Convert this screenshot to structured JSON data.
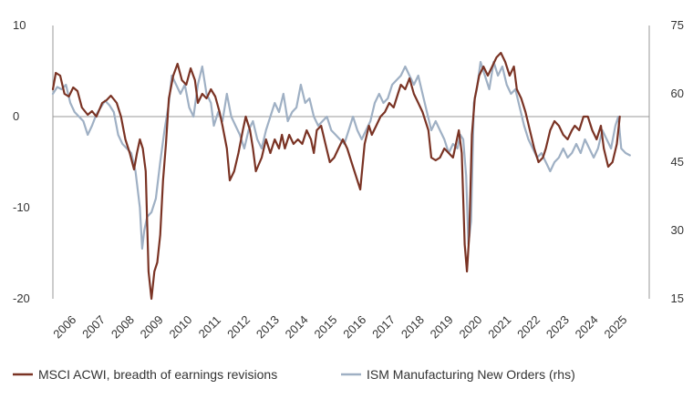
{
  "chart_data": {
    "type": "line",
    "title": "",
    "xlabel": "",
    "ylabel": "",
    "ylim": [
      -20,
      10
    ],
    "y2lim": [
      15,
      75
    ],
    "yticks": [
      "10",
      "0",
      "-10",
      "-20"
    ],
    "y2ticks": [
      "75",
      "60",
      "45",
      "30",
      "15"
    ],
    "xticks": [
      "2006",
      "2007",
      "2008",
      "2009",
      "2010",
      "2011",
      "2012",
      "2013",
      "2014",
      "2015",
      "2016",
      "2017",
      "2018",
      "2019",
      "2020",
      "2021",
      "2022",
      "2023",
      "2024",
      "2025"
    ],
    "grid": false,
    "legend_position": "bottom",
    "colors": {
      "msci": "#7a3324",
      "ism": "#9fb0c4",
      "axis": "#999999"
    },
    "series": [
      {
        "name": "MSCI ACWI, breadth of earnings revisions",
        "axis": "left",
        "points": [
          [
            2006.0,
            3.0
          ],
          [
            2006.1,
            4.8
          ],
          [
            2006.25,
            4.5
          ],
          [
            2006.4,
            2.5
          ],
          [
            2006.55,
            2.2
          ],
          [
            2006.7,
            3.2
          ],
          [
            2006.85,
            2.8
          ],
          [
            2007.0,
            1.0
          ],
          [
            2007.2,
            0.2
          ],
          [
            2007.35,
            0.6
          ],
          [
            2007.5,
            0.0
          ],
          [
            2007.7,
            1.5
          ],
          [
            2007.85,
            1.8
          ],
          [
            2008.0,
            2.3
          ],
          [
            2008.2,
            1.5
          ],
          [
            2008.35,
            0.0
          ],
          [
            2008.5,
            -2.5
          ],
          [
            2008.65,
            -4.0
          ],
          [
            2008.8,
            -5.8
          ],
          [
            2008.9,
            -4.0
          ],
          [
            2009.0,
            -2.5
          ],
          [
            2009.1,
            -3.5
          ],
          [
            2009.2,
            -6.0
          ],
          [
            2009.3,
            -17.0
          ],
          [
            2009.4,
            -20.0
          ],
          [
            2009.5,
            -17.0
          ],
          [
            2009.6,
            -16.0
          ],
          [
            2009.7,
            -13.0
          ],
          [
            2009.8,
            -7.0
          ],
          [
            2009.9,
            -3.0
          ],
          [
            2010.0,
            2.0
          ],
          [
            2010.15,
            4.5
          ],
          [
            2010.3,
            5.8
          ],
          [
            2010.45,
            4.0
          ],
          [
            2010.6,
            3.5
          ],
          [
            2010.75,
            5.3
          ],
          [
            2010.9,
            4.0
          ],
          [
            2011.0,
            1.5
          ],
          [
            2011.15,
            2.5
          ],
          [
            2011.3,
            2.0
          ],
          [
            2011.45,
            3.0
          ],
          [
            2011.6,
            2.2
          ],
          [
            2011.75,
            0.5
          ],
          [
            2011.85,
            -1.0
          ],
          [
            2012.0,
            -3.5
          ],
          [
            2012.1,
            -7.0
          ],
          [
            2012.25,
            -6.0
          ],
          [
            2012.4,
            -4.0
          ],
          [
            2012.55,
            -1.5
          ],
          [
            2012.65,
            0.0
          ],
          [
            2012.8,
            -1.5
          ],
          [
            2012.9,
            -3.5
          ],
          [
            2013.0,
            -6.0
          ],
          [
            2013.2,
            -4.5
          ],
          [
            2013.35,
            -2.5
          ],
          [
            2013.5,
            -4.0
          ],
          [
            2013.65,
            -2.5
          ],
          [
            2013.8,
            -3.5
          ],
          [
            2013.9,
            -2.0
          ],
          [
            2014.0,
            -3.5
          ],
          [
            2014.15,
            -2.0
          ],
          [
            2014.3,
            -3.0
          ],
          [
            2014.45,
            -2.5
          ],
          [
            2014.6,
            -3.0
          ],
          [
            2014.75,
            -1.5
          ],
          [
            2014.9,
            -2.5
          ],
          [
            2015.0,
            -4.0
          ],
          [
            2015.1,
            -1.5
          ],
          [
            2015.25,
            -1.0
          ],
          [
            2015.4,
            -3.0
          ],
          [
            2015.55,
            -5.0
          ],
          [
            2015.7,
            -4.5
          ],
          [
            2015.85,
            -3.5
          ],
          [
            2016.0,
            -2.5
          ],
          [
            2016.15,
            -3.5
          ],
          [
            2016.3,
            -5.0
          ],
          [
            2016.45,
            -6.5
          ],
          [
            2016.6,
            -8.0
          ],
          [
            2016.75,
            -3.0
          ],
          [
            2016.9,
            -1.0
          ],
          [
            2017.0,
            -2.0
          ],
          [
            2017.15,
            -1.0
          ],
          [
            2017.3,
            0.0
          ],
          [
            2017.45,
            0.5
          ],
          [
            2017.6,
            1.5
          ],
          [
            2017.75,
            1.0
          ],
          [
            2017.9,
            2.5
          ],
          [
            2018.0,
            3.5
          ],
          [
            2018.15,
            3.0
          ],
          [
            2018.3,
            4.2
          ],
          [
            2018.45,
            2.5
          ],
          [
            2018.6,
            1.5
          ],
          [
            2018.75,
            0.5
          ],
          [
            2018.85,
            -0.5
          ],
          [
            2018.95,
            -1.5
          ],
          [
            2019.05,
            -4.5
          ],
          [
            2019.2,
            -4.8
          ],
          [
            2019.35,
            -4.5
          ],
          [
            2019.5,
            -3.5
          ],
          [
            2019.65,
            -4.0
          ],
          [
            2019.8,
            -4.5
          ],
          [
            2019.9,
            -3.0
          ],
          [
            2020.0,
            -1.5
          ],
          [
            2020.1,
            -4.0
          ],
          [
            2020.2,
            -14.0
          ],
          [
            2020.28,
            -17.0
          ],
          [
            2020.36,
            -13.0
          ],
          [
            2020.45,
            -2.0
          ],
          [
            2020.55,
            2.0
          ],
          [
            2020.7,
            4.5
          ],
          [
            2020.85,
            5.5
          ],
          [
            2021.0,
            4.5
          ],
          [
            2021.15,
            5.5
          ],
          [
            2021.3,
            6.5
          ],
          [
            2021.45,
            7.0
          ],
          [
            2021.6,
            6.0
          ],
          [
            2021.75,
            4.5
          ],
          [
            2021.9,
            5.5
          ],
          [
            2022.0,
            3.0
          ],
          [
            2022.15,
            2.0
          ],
          [
            2022.3,
            0.5
          ],
          [
            2022.45,
            -1.5
          ],
          [
            2022.6,
            -3.5
          ],
          [
            2022.75,
            -5.0
          ],
          [
            2022.9,
            -4.5
          ],
          [
            2023.0,
            -3.5
          ],
          [
            2023.15,
            -1.5
          ],
          [
            2023.3,
            -0.5
          ],
          [
            2023.45,
            -1.0
          ],
          [
            2023.6,
            -2.0
          ],
          [
            2023.75,
            -2.5
          ],
          [
            2023.9,
            -1.5
          ],
          [
            2024.0,
            -1.0
          ],
          [
            2024.15,
            -1.5
          ],
          [
            2024.3,
            0.0
          ],
          [
            2024.45,
            0.0
          ],
          [
            2024.6,
            -1.5
          ],
          [
            2024.75,
            -2.5
          ],
          [
            2024.9,
            -1.0
          ],
          [
            2025.0,
            -3.5
          ],
          [
            2025.15,
            -5.5
          ],
          [
            2025.3,
            -5.0
          ],
          [
            2025.45,
            -3.0
          ],
          [
            2025.55,
            0.0
          ]
        ]
      },
      {
        "name": "ISM Manufacturing New Orders (rhs)",
        "axis": "right",
        "points": [
          [
            2006.0,
            60.0
          ],
          [
            2006.15,
            61.5
          ],
          [
            2006.3,
            61.0
          ],
          [
            2006.45,
            62.0
          ],
          [
            2006.6,
            58.0
          ],
          [
            2006.75,
            56.0
          ],
          [
            2006.9,
            55.0
          ],
          [
            2007.05,
            54.0
          ],
          [
            2007.2,
            51.0
          ],
          [
            2007.35,
            53.0
          ],
          [
            2007.5,
            55.5
          ],
          [
            2007.65,
            57.0
          ],
          [
            2007.8,
            58.5
          ],
          [
            2007.95,
            57.5
          ],
          [
            2008.1,
            56.0
          ],
          [
            2008.25,
            51.0
          ],
          [
            2008.4,
            49.0
          ],
          [
            2008.55,
            48.0
          ],
          [
            2008.7,
            47.0
          ],
          [
            2008.85,
            43.0
          ],
          [
            2009.0,
            35.0
          ],
          [
            2009.08,
            26.0
          ],
          [
            2009.15,
            30.0
          ],
          [
            2009.25,
            33.0
          ],
          [
            2009.4,
            34.0
          ],
          [
            2009.55,
            37.0
          ],
          [
            2009.7,
            45.0
          ],
          [
            2009.85,
            52.0
          ],
          [
            2010.0,
            58.0
          ],
          [
            2010.1,
            64.0
          ],
          [
            2010.25,
            62.0
          ],
          [
            2010.4,
            60.0
          ],
          [
            2010.55,
            62.0
          ],
          [
            2010.7,
            57.0
          ],
          [
            2010.85,
            55.0
          ],
          [
            2011.0,
            62.0
          ],
          [
            2011.15,
            66.0
          ],
          [
            2011.3,
            60.0
          ],
          [
            2011.45,
            58.0
          ],
          [
            2011.55,
            53.0
          ],
          [
            2011.7,
            56.0
          ],
          [
            2011.85,
            54.0
          ],
          [
            2012.0,
            60.0
          ],
          [
            2012.15,
            55.0
          ],
          [
            2012.3,
            53.0
          ],
          [
            2012.45,
            51.0
          ],
          [
            2012.6,
            48.0
          ],
          [
            2012.75,
            52.0
          ],
          [
            2012.9,
            54.0
          ],
          [
            2013.05,
            50.0
          ],
          [
            2013.2,
            48.0
          ],
          [
            2013.35,
            52.0
          ],
          [
            2013.5,
            55.0
          ],
          [
            2013.65,
            58.0
          ],
          [
            2013.8,
            56.0
          ],
          [
            2013.95,
            60.0
          ],
          [
            2014.1,
            54.0
          ],
          [
            2014.25,
            56.0
          ],
          [
            2014.4,
            57.0
          ],
          [
            2014.55,
            62.0
          ],
          [
            2014.7,
            58.0
          ],
          [
            2014.85,
            59.0
          ],
          [
            2015.0,
            55.0
          ],
          [
            2015.15,
            53.0
          ],
          [
            2015.3,
            54.0
          ],
          [
            2015.45,
            55.0
          ],
          [
            2015.6,
            52.0
          ],
          [
            2015.75,
            51.0
          ],
          [
            2015.9,
            50.0
          ],
          [
            2016.05,
            49.0
          ],
          [
            2016.2,
            52.0
          ],
          [
            2016.35,
            55.0
          ],
          [
            2016.5,
            52.0
          ],
          [
            2016.65,
            50.0
          ],
          [
            2016.8,
            52.0
          ],
          [
            2016.95,
            54.0
          ],
          [
            2017.1,
            58.0
          ],
          [
            2017.25,
            60.0
          ],
          [
            2017.4,
            58.0
          ],
          [
            2017.55,
            59.0
          ],
          [
            2017.7,
            62.0
          ],
          [
            2017.85,
            63.0
          ],
          [
            2018.0,
            64.0
          ],
          [
            2018.15,
            66.0
          ],
          [
            2018.3,
            64.0
          ],
          [
            2018.45,
            62.0
          ],
          [
            2018.6,
            64.0
          ],
          [
            2018.75,
            60.0
          ],
          [
            2018.9,
            56.0
          ],
          [
            2019.05,
            52.0
          ],
          [
            2019.2,
            54.0
          ],
          [
            2019.35,
            52.0
          ],
          [
            2019.5,
            50.0
          ],
          [
            2019.65,
            47.0
          ],
          [
            2019.8,
            49.0
          ],
          [
            2019.95,
            48.0
          ],
          [
            2020.05,
            51.0
          ],
          [
            2020.15,
            50.0
          ],
          [
            2020.25,
            42.0
          ],
          [
            2020.33,
            27.0
          ],
          [
            2020.42,
            32.0
          ],
          [
            2020.52,
            58.0
          ],
          [
            2020.62,
            61.0
          ],
          [
            2020.75,
            67.0
          ],
          [
            2020.9,
            64.0
          ],
          [
            2021.05,
            61.0
          ],
          [
            2021.2,
            67.0
          ],
          [
            2021.35,
            64.0
          ],
          [
            2021.5,
            66.0
          ],
          [
            2021.65,
            62.0
          ],
          [
            2021.8,
            60.0
          ],
          [
            2021.95,
            61.0
          ],
          [
            2022.1,
            57.0
          ],
          [
            2022.25,
            53.0
          ],
          [
            2022.4,
            50.0
          ],
          [
            2022.55,
            48.0
          ],
          [
            2022.7,
            46.0
          ],
          [
            2022.85,
            47.0
          ],
          [
            2023.0,
            45.0
          ],
          [
            2023.15,
            43.0
          ],
          [
            2023.3,
            45.0
          ],
          [
            2023.45,
            46.0
          ],
          [
            2023.6,
            48.0
          ],
          [
            2023.75,
            46.0
          ],
          [
            2023.9,
            47.0
          ],
          [
            2024.05,
            49.0
          ],
          [
            2024.2,
            47.0
          ],
          [
            2024.35,
            50.0
          ],
          [
            2024.5,
            48.0
          ],
          [
            2024.65,
            46.0
          ],
          [
            2024.8,
            48.0
          ],
          [
            2024.95,
            52.0
          ],
          [
            2025.1,
            50.0
          ],
          [
            2025.25,
            48.0
          ],
          [
            2025.4,
            53.0
          ],
          [
            2025.5,
            55.0
          ],
          [
            2025.6,
            48.0
          ],
          [
            2025.75,
            47.0
          ],
          [
            2025.9,
            46.5
          ]
        ]
      }
    ]
  }
}
